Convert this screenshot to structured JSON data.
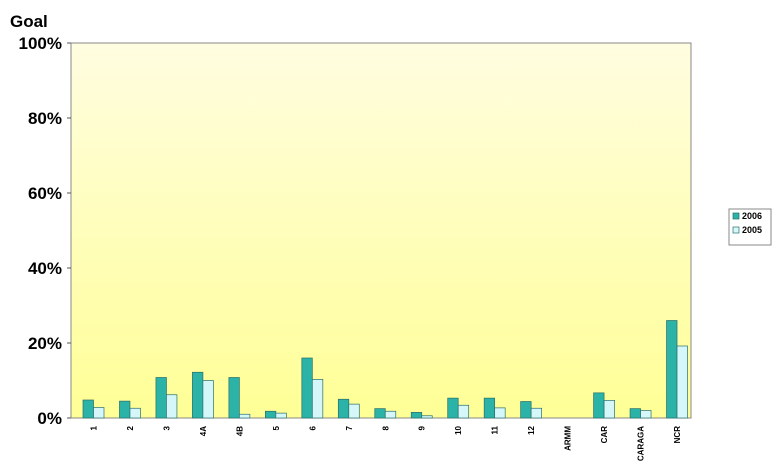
{
  "chart_data": {
    "type": "bar",
    "ylabel": "Goal",
    "ylim": [
      0,
      100
    ],
    "y_ticks": [
      "0%",
      "20%",
      "40%",
      "60%",
      "80%",
      "100%"
    ],
    "categories": [
      "1",
      "2",
      "3",
      "4A",
      "4B",
      "5",
      "6",
      "7",
      "8",
      "9",
      "10",
      "11",
      "12",
      "ARMM",
      "CAR",
      "CARAGA",
      "NCR"
    ],
    "series": [
      {
        "name": "2006",
        "color": "#2ab3a6",
        "values": [
          4.8,
          4.5,
          10.8,
          12.2,
          10.8,
          1.8,
          16.0,
          5.0,
          2.5,
          1.5,
          5.3,
          5.3,
          4.4,
          0,
          6.7,
          2.5,
          26.0
        ]
      },
      {
        "name": "2005",
        "color": "#d6f7fa",
        "values": [
          2.8,
          2.6,
          6.2,
          10.0,
          1.0,
          1.3,
          10.3,
          3.7,
          1.8,
          0.6,
          3.4,
          2.7,
          2.6,
          0,
          4.7,
          2.0,
          19.2
        ]
      }
    ],
    "legend_position": "right",
    "grid": false,
    "background_gradient": [
      "#fffde0",
      "#ffff96"
    ]
  }
}
